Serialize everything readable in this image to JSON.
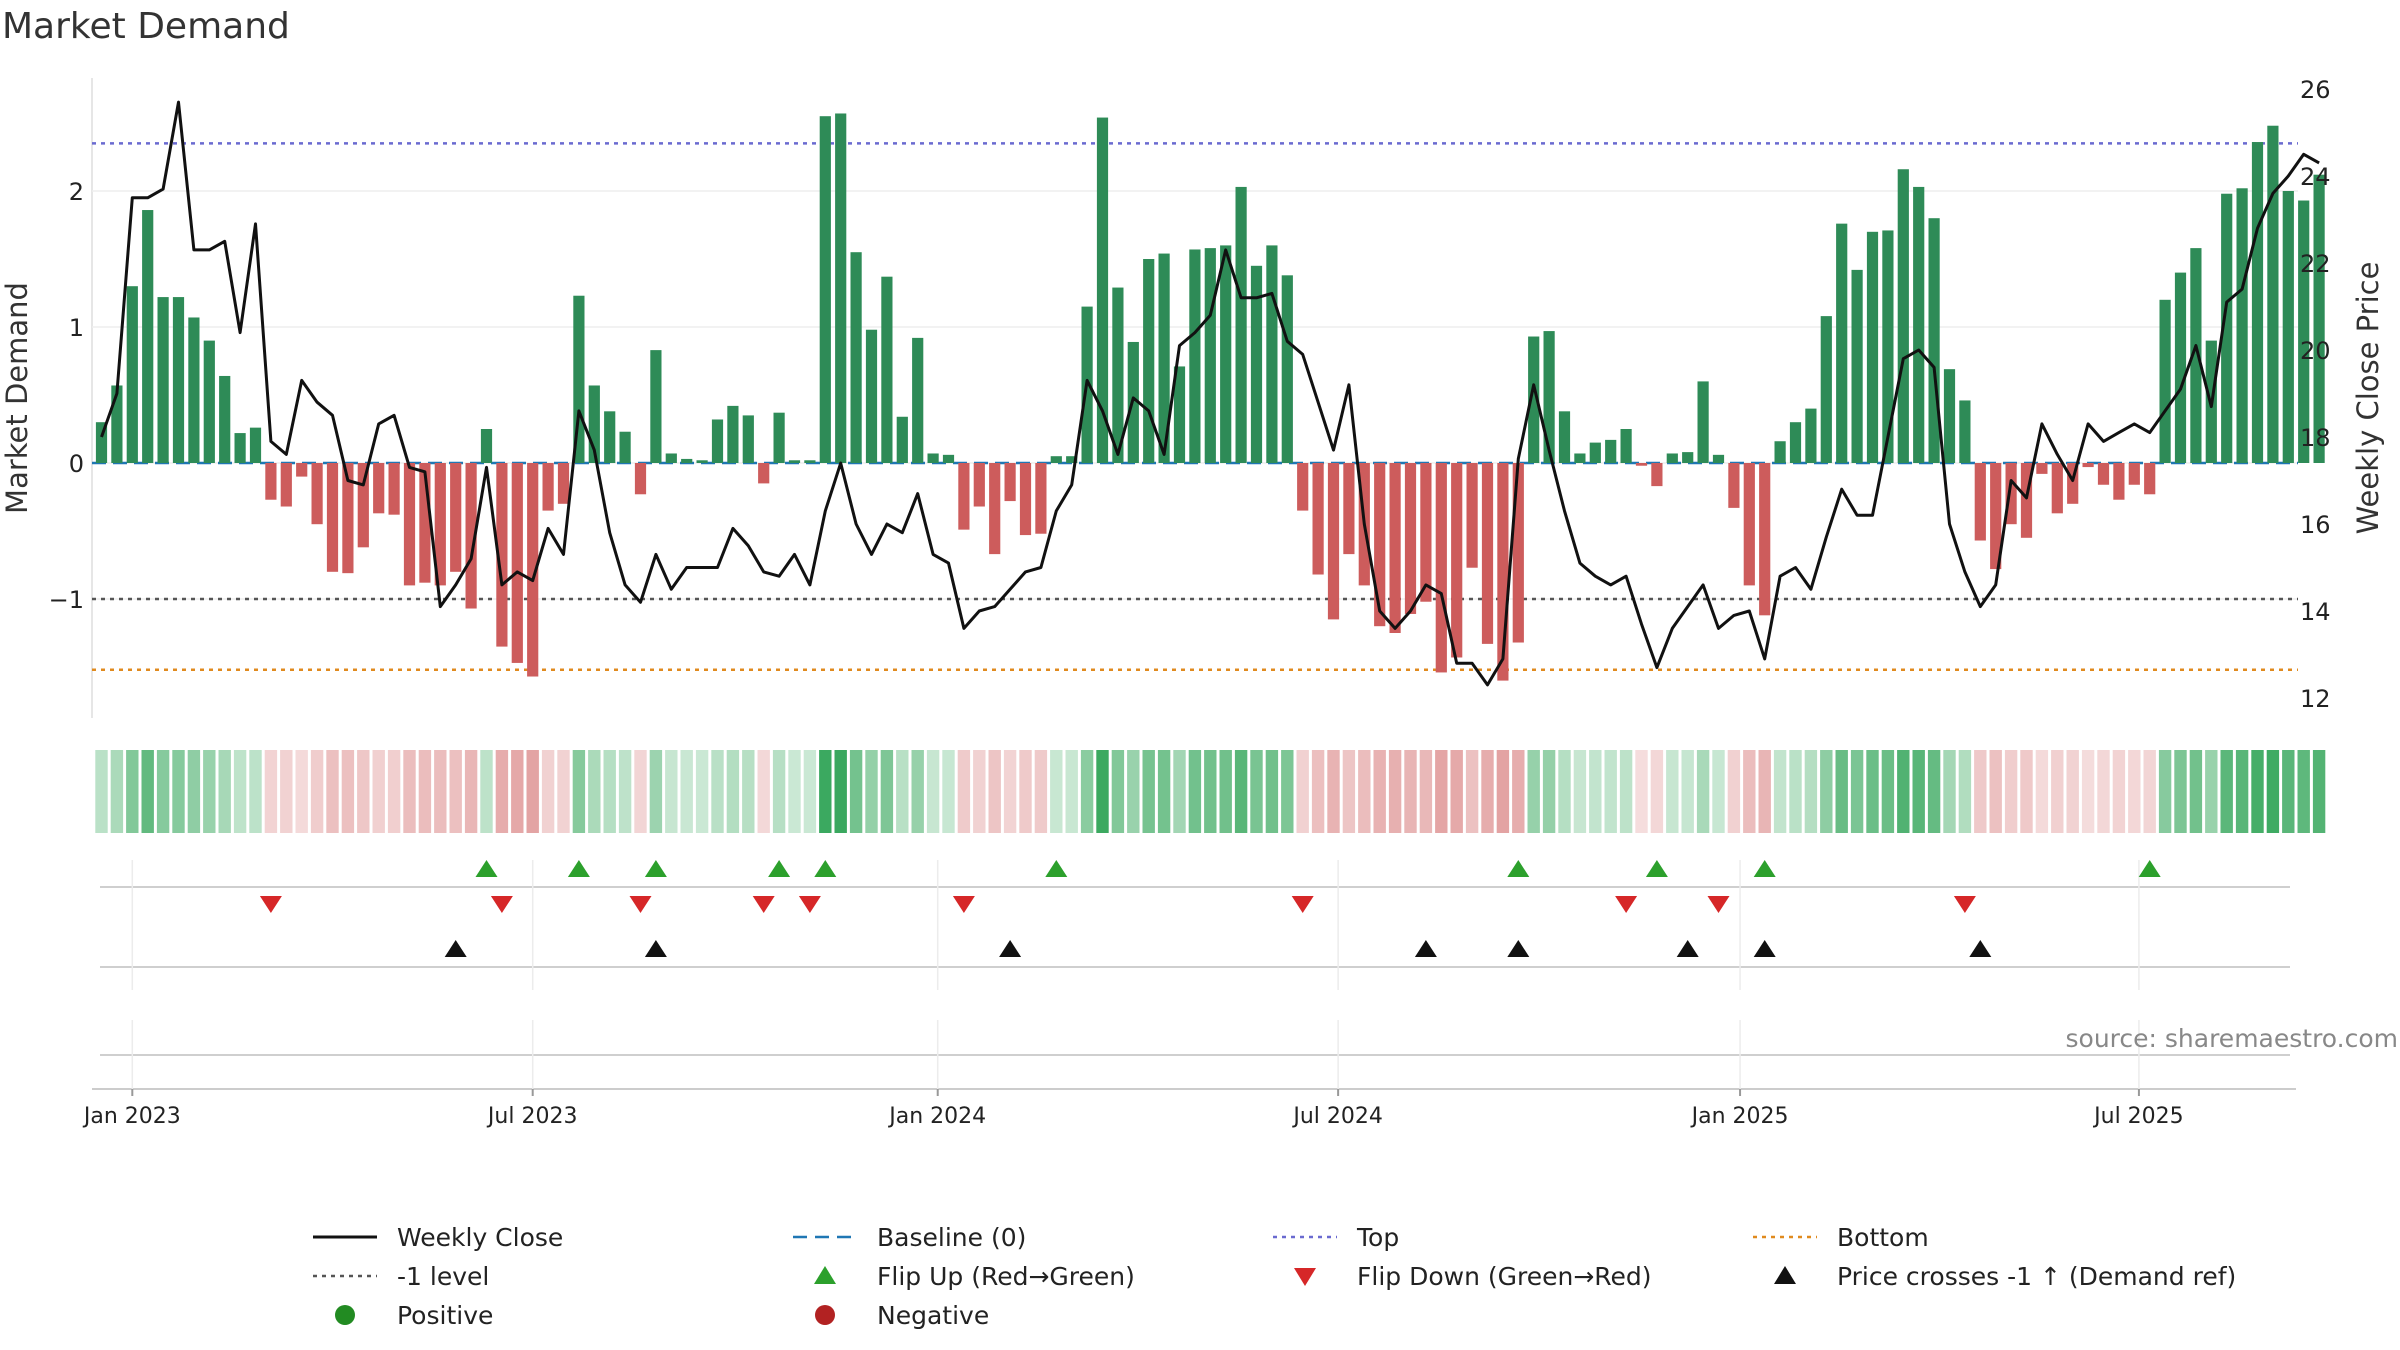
{
  "chart_data": {
    "type": "bar",
    "title": "Market Demand",
    "ylabel_left": "Market Demand",
    "ylabel_right": "Weekly Close Price",
    "source": "source: sharemaestro.com",
    "ylim_left": [
      -1.9,
      2.85
    ],
    "ylim_right": [
      11.5,
      26.5
    ],
    "yticks_left": [
      {
        "value": 2,
        "label": "2"
      },
      {
        "value": 1,
        "label": "1"
      },
      {
        "value": 0,
        "label": "0"
      },
      {
        "value": -1,
        "label": "−1"
      }
    ],
    "yticks_right": [
      {
        "value": 26,
        "label": "26"
      },
      {
        "value": 24,
        "label": "24"
      },
      {
        "value": 22,
        "label": "22"
      },
      {
        "value": 20,
        "label": "20"
      },
      {
        "value": 18,
        "label": "18"
      },
      {
        "value": 16,
        "label": "16"
      },
      {
        "value": 14,
        "label": "14"
      },
      {
        "value": 12,
        "label": "12"
      }
    ],
    "x_ticks": [
      {
        "week": 2,
        "label": "Jan 2023"
      },
      {
        "week": 28,
        "label": "Jul 2023"
      },
      {
        "week": 54.3,
        "label": "Jan 2024"
      },
      {
        "week": 80.3,
        "label": "Jul 2024"
      },
      {
        "week": 106.4,
        "label": "Jan 2025"
      },
      {
        "week": 132.3,
        "label": "Jul 2025"
      }
    ],
    "reference_lines": {
      "baseline": 0,
      "top": 2.35,
      "minus_one": -1,
      "bottom": -1.52
    },
    "colors": {
      "positive": "#2e8b57",
      "negative": "#cd5c5c",
      "close": "#111111",
      "baseline": "#1f77b4",
      "top": "#6a6ad0",
      "minus_one": "#555555",
      "bottom": "#e08a1e",
      "flip_up": "#2ca02c",
      "flip_down": "#d62728",
      "cross": "#111111",
      "legend_positive": "#228b22",
      "legend_negative": "#b22222"
    },
    "demand": [
      0.3,
      0.57,
      1.3,
      1.86,
      1.22,
      1.22,
      1.07,
      0.9,
      0.64,
      0.22,
      0.26,
      -0.27,
      -0.32,
      -0.1,
      -0.45,
      -0.8,
      -0.81,
      -0.62,
      -0.37,
      -0.38,
      -0.9,
      -0.88,
      -0.9,
      -0.8,
      -1.07,
      0.25,
      -1.35,
      -1.47,
      -1.57,
      -0.35,
      -0.3,
      1.23,
      0.57,
      0.38,
      0.23,
      -0.23,
      0.83,
      0.07,
      0.03,
      0.02,
      0.32,
      0.42,
      0.35,
      -0.15,
      0.37,
      0.02,
      0.02,
      2.55,
      2.57,
      1.55,
      0.98,
      1.37,
      0.34,
      0.92,
      0.07,
      0.06,
      -0.49,
      -0.32,
      -0.67,
      -0.28,
      -0.53,
      -0.52,
      0.05,
      0.05,
      1.15,
      2.54,
      1.29,
      0.89,
      1.5,
      1.54,
      0.71,
      1.57,
      1.58,
      1.6,
      2.03,
      1.45,
      1.6,
      1.38,
      -0.35,
      -0.82,
      -1.15,
      -0.67,
      -0.9,
      -1.2,
      -1.25,
      -1.11,
      -1.02,
      -1.54,
      -1.43,
      -0.77,
      -1.33,
      -1.6,
      -1.32,
      0.93,
      0.97,
      0.38,
      0.07,
      0.15,
      0.17,
      0.25,
      -0.02,
      -0.17,
      0.07,
      0.08,
      0.6,
      0.06,
      -0.33,
      -0.9,
      -1.12,
      0.16,
      0.3,
      0.4,
      1.08,
      1.76,
      1.42,
      1.7,
      1.71,
      2.16,
      2.03,
      1.8,
      0.69,
      0.46,
      -0.57,
      -0.78,
      -0.45,
      -0.55,
      -0.08,
      -0.37,
      -0.3,
      -0.03,
      -0.16,
      -0.27,
      -0.16,
      -0.23,
      1.2,
      1.4,
      1.58,
      0.9,
      1.98,
      2.02,
      2.36,
      2.48,
      2.0,
      1.93,
      2.12
    ],
    "close": [
      18.0,
      19.0,
      23.5,
      23.5,
      23.7,
      25.7,
      22.3,
      22.3,
      22.5,
      20.4,
      22.9,
      17.9,
      17.6,
      19.3,
      18.8,
      18.5,
      17.0,
      16.9,
      18.3,
      18.5,
      17.3,
      17.2,
      14.1,
      14.6,
      15.2,
      17.3,
      14.6,
      14.9,
      14.7,
      15.9,
      15.3,
      18.6,
      17.7,
      15.8,
      14.6,
      14.2,
      15.3,
      14.5,
      15.0,
      15.0,
      15.0,
      15.9,
      15.5,
      14.9,
      14.8,
      15.3,
      14.6,
      16.3,
      17.4,
      16.0,
      15.3,
      16.0,
      15.8,
      16.7,
      15.3,
      15.1,
      13.6,
      14.0,
      14.1,
      14.5,
      14.9,
      15.0,
      16.3,
      16.9,
      19.3,
      18.6,
      17.6,
      18.9,
      18.6,
      17.6,
      20.1,
      20.4,
      20.8,
      22.3,
      21.2,
      21.2,
      21.3,
      20.2,
      19.9,
      18.8,
      17.7,
      19.2,
      16.0,
      14.0,
      13.6,
      14.0,
      14.6,
      14.4,
      12.8,
      12.8,
      12.3,
      12.9,
      17.5,
      19.2,
      17.7,
      16.3,
      15.1,
      14.8,
      14.6,
      14.8,
      13.7,
      12.7,
      13.6,
      14.1,
      14.6,
      13.6,
      13.9,
      14.0,
      12.9,
      14.8,
      15.0,
      14.5,
      15.7,
      16.8,
      16.2,
      16.2,
      18.0,
      19.8,
      20.0,
      19.6,
      16.0,
      14.9,
      14.1,
      14.6,
      17.0,
      16.6,
      18.3,
      17.6,
      17.0,
      18.3,
      17.9,
      18.1,
      18.3,
      18.1,
      18.6,
      19.1,
      20.1,
      18.7,
      21.1,
      21.4,
      22.8,
      23.6,
      24.0,
      24.5,
      24.3
    ],
    "flip_up_weeks": [
      25,
      31,
      36,
      44,
      47,
      62,
      92,
      101,
      108,
      133
    ],
    "flip_down_weeks": [
      11,
      26,
      35,
      43,
      46,
      56,
      78,
      99,
      105,
      121
    ],
    "price_cross_weeks": [
      23,
      36,
      59,
      86,
      92,
      103,
      108,
      122
    ],
    "legend": [
      {
        "key": "close",
        "label": "Weekly Close"
      },
      {
        "key": "baseline",
        "label": "Baseline (0)"
      },
      {
        "key": "top",
        "label": "Top"
      },
      {
        "key": "bottom",
        "label": "Bottom"
      },
      {
        "key": "minus_one",
        "label": "-1 level"
      },
      {
        "key": "flip_up",
        "label": "Flip Up (Red→Green)"
      },
      {
        "key": "flip_down",
        "label": "Flip Down (Green→Red)"
      },
      {
        "key": "cross",
        "label": "Price crosses -1 ↑ (Demand ref)"
      },
      {
        "key": "positive",
        "label": "Positive"
      },
      {
        "key": "negative",
        "label": "Negative"
      }
    ]
  }
}
